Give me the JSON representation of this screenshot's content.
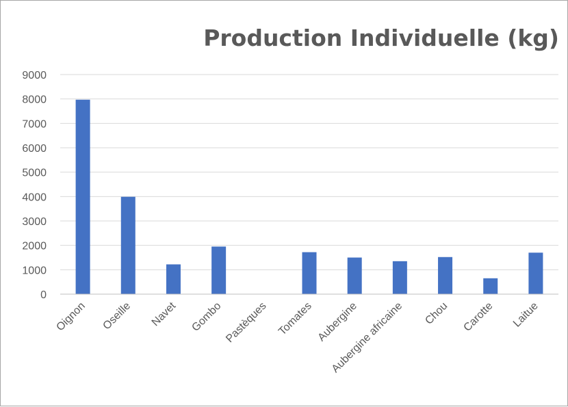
{
  "chart_data": {
    "type": "bar",
    "title": "Production Individuelle (kg)",
    "xlabel": "",
    "ylabel": "",
    "categories": [
      "Oignon",
      "Oseille",
      "Navet",
      "Gombo",
      "Pastèques",
      "Tomates",
      "Aubergine",
      "Aubergine africaine",
      "Chou",
      "Carotte",
      "Laitue"
    ],
    "values": [
      7970,
      3990,
      1220,
      1950,
      0,
      1720,
      1500,
      1350,
      1520,
      650,
      1700
    ],
    "ylim": [
      0,
      9000
    ],
    "yticks": [
      0,
      1000,
      2000,
      3000,
      4000,
      5000,
      6000,
      7000,
      8000,
      9000
    ],
    "grid": true,
    "legend": "none",
    "bar_color": "#4472c4"
  }
}
